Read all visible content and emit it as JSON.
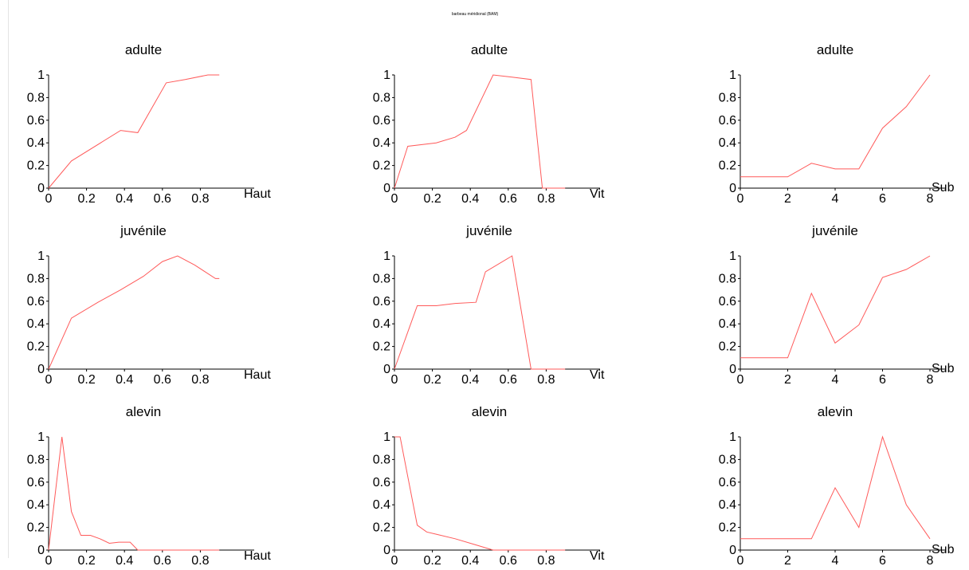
{
  "page_title": "barbeau méridional   (BAM)",
  "colors": {
    "series": "#ff5a5a",
    "axis": "#000000"
  },
  "chart_data": [
    {
      "type": "line",
      "title": "adulte",
      "xlabel": "Haut",
      "xlim": [
        0,
        1
      ],
      "ylim": [
        0,
        1
      ],
      "xticks": [
        "0",
        "0.2",
        "0.4",
        "0.6",
        "0.8"
      ],
      "yticks": [
        "0",
        "0.2",
        "0.4",
        "0.6",
        "0.8",
        "1"
      ],
      "x": [
        0,
        0.12,
        0.38,
        0.47,
        0.62,
        0.72,
        0.84,
        0.9
      ],
      "y": [
        0,
        0.24,
        0.51,
        0.49,
        0.93,
        0.96,
        1.0,
        1.0
      ]
    },
    {
      "type": "line",
      "title": "adulte",
      "xlabel": "Vit",
      "xlim": [
        0,
        1
      ],
      "ylim": [
        0,
        1
      ],
      "xticks": [
        "0",
        "0.2",
        "0.4",
        "0.6",
        "0.8"
      ],
      "yticks": [
        "0",
        "0.2",
        "0.4",
        "0.6",
        "0.8",
        "1"
      ],
      "x": [
        0,
        0.07,
        0.22,
        0.32,
        0.38,
        0.52,
        0.62,
        0.72,
        0.78,
        0.9
      ],
      "y": [
        0,
        0.37,
        0.4,
        0.45,
        0.51,
        1.0,
        0.98,
        0.96,
        0.0,
        0.0
      ]
    },
    {
      "type": "line",
      "title": "adulte",
      "xlabel": "Sub",
      "xlim": [
        0,
        8
      ],
      "ylim": [
        0,
        1
      ],
      "xticks": [
        "0",
        "2",
        "4",
        "6",
        "8"
      ],
      "yticks": [
        "0",
        "0.2",
        "0.4",
        "0.6",
        "0.8",
        "1"
      ],
      "x": [
        0,
        1,
        2,
        3,
        4,
        5,
        6,
        7,
        8
      ],
      "y": [
        0.1,
        0.1,
        0.1,
        0.22,
        0.17,
        0.17,
        0.53,
        0.72,
        1.0
      ]
    },
    {
      "type": "line",
      "title": "juvénile",
      "xlabel": "Haut",
      "xlim": [
        0,
        1
      ],
      "ylim": [
        0,
        1
      ],
      "xticks": [
        "0",
        "0.2",
        "0.4",
        "0.6",
        "0.8"
      ],
      "yticks": [
        "0",
        "0.2",
        "0.4",
        "0.6",
        "0.8",
        "1"
      ],
      "x": [
        0,
        0.12,
        0.26,
        0.38,
        0.5,
        0.6,
        0.68,
        0.77,
        0.88,
        0.9
      ],
      "y": [
        0,
        0.45,
        0.59,
        0.7,
        0.82,
        0.95,
        1.0,
        0.92,
        0.8,
        0.8
      ]
    },
    {
      "type": "line",
      "title": "juvénile",
      "xlabel": "Vit",
      "xlim": [
        0,
        1
      ],
      "ylim": [
        0,
        1
      ],
      "xticks": [
        "0",
        "0.2",
        "0.4",
        "0.6",
        "0.8"
      ],
      "yticks": [
        "0",
        "0.2",
        "0.4",
        "0.6",
        "0.8",
        "1"
      ],
      "x": [
        0,
        0.12,
        0.22,
        0.32,
        0.43,
        0.48,
        0.62,
        0.72,
        0.9
      ],
      "y": [
        0,
        0.56,
        0.56,
        0.58,
        0.59,
        0.86,
        1.0,
        0.0,
        0.0
      ]
    },
    {
      "type": "line",
      "title": "juvénile",
      "xlabel": "Sub",
      "xlim": [
        0,
        8
      ],
      "ylim": [
        0,
        1
      ],
      "xticks": [
        "0",
        "2",
        "4",
        "6",
        "8"
      ],
      "yticks": [
        "0",
        "0.2",
        "0.4",
        "0.6",
        "0.8",
        "1"
      ],
      "x": [
        0,
        1,
        2,
        3,
        4,
        5,
        6,
        7,
        8
      ],
      "y": [
        0.1,
        0.1,
        0.1,
        0.67,
        0.23,
        0.39,
        0.81,
        0.88,
        1.0
      ]
    },
    {
      "type": "line",
      "title": "alevin",
      "xlabel": "Haut",
      "xlim": [
        0,
        1
      ],
      "ylim": [
        0,
        1
      ],
      "xticks": [
        "0",
        "0.2",
        "0.4",
        "0.6",
        "0.8"
      ],
      "yticks": [
        "0",
        "0.2",
        "0.4",
        "0.6",
        "0.8",
        "1"
      ],
      "x": [
        0,
        0.07,
        0.12,
        0.17,
        0.22,
        0.27,
        0.32,
        0.37,
        0.43,
        0.47,
        0.9
      ],
      "y": [
        0,
        1.0,
        0.34,
        0.13,
        0.13,
        0.1,
        0.06,
        0.07,
        0.07,
        0.0,
        0.0
      ]
    },
    {
      "type": "line",
      "title": "alevin",
      "xlabel": "Vit",
      "xlim": [
        0,
        1
      ],
      "ylim": [
        0,
        1
      ],
      "xticks": [
        "0",
        "0.2",
        "0.4",
        "0.6",
        "0.8"
      ],
      "yticks": [
        "0",
        "0.2",
        "0.4",
        "0.6",
        "0.8",
        "1"
      ],
      "x": [
        0,
        0.03,
        0.07,
        0.12,
        0.17,
        0.22,
        0.32,
        0.42,
        0.52,
        0.9
      ],
      "y": [
        1.0,
        1.0,
        0.65,
        0.22,
        0.16,
        0.14,
        0.1,
        0.05,
        0.0,
        0.0
      ]
    },
    {
      "type": "line",
      "title": "alevin",
      "xlabel": "Sub",
      "xlim": [
        0,
        8
      ],
      "ylim": [
        0,
        1
      ],
      "xticks": [
        "0",
        "2",
        "4",
        "6",
        "8"
      ],
      "yticks": [
        "0",
        "0.2",
        "0.4",
        "0.6",
        "0.8",
        "1"
      ],
      "x": [
        0,
        1,
        2,
        3,
        4,
        5,
        6,
        7,
        8
      ],
      "y": [
        0.1,
        0.1,
        0.1,
        0.1,
        0.55,
        0.2,
        1.0,
        0.4,
        0.1
      ]
    }
  ]
}
